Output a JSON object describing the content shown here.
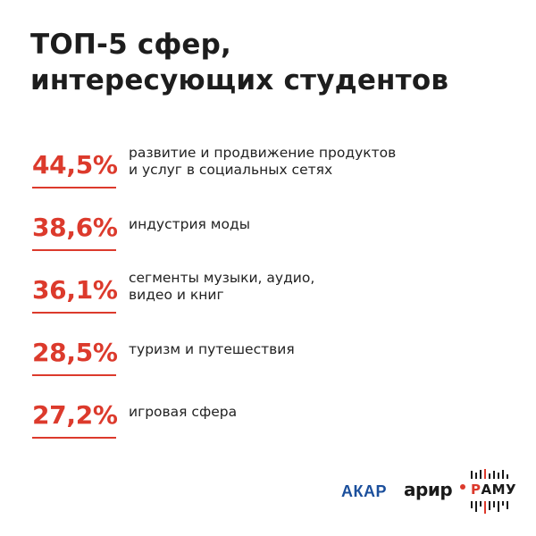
{
  "title": {
    "line1": "ТОП-5 сфер,",
    "line2": "интересующих студентов"
  },
  "items": [
    {
      "value": "44,5%",
      "label_lines": [
        "развитие и продвижение продуктов",
        "и услуг в социальных сетях"
      ]
    },
    {
      "value": "38,6%",
      "label_lines": [
        "индустрия моды"
      ]
    },
    {
      "value": "36,1%",
      "label_lines": [
        "сегменты музыки, аудио,",
        "видео и книг"
      ]
    },
    {
      "value": "28,5%",
      "label_lines": [
        "туризм и путешествия"
      ]
    },
    {
      "value": "27,2%",
      "label_lines": [
        "игровая сфера"
      ]
    }
  ],
  "logos": {
    "akar": "АКАР",
    "arir": "арир",
    "ramu_first": "Р",
    "ramu_rest": "АМУ"
  },
  "colors": {
    "accent": "#dc3a2c",
    "akar_blue": "#1b4f9c",
    "text": "#1a1a1a"
  }
}
